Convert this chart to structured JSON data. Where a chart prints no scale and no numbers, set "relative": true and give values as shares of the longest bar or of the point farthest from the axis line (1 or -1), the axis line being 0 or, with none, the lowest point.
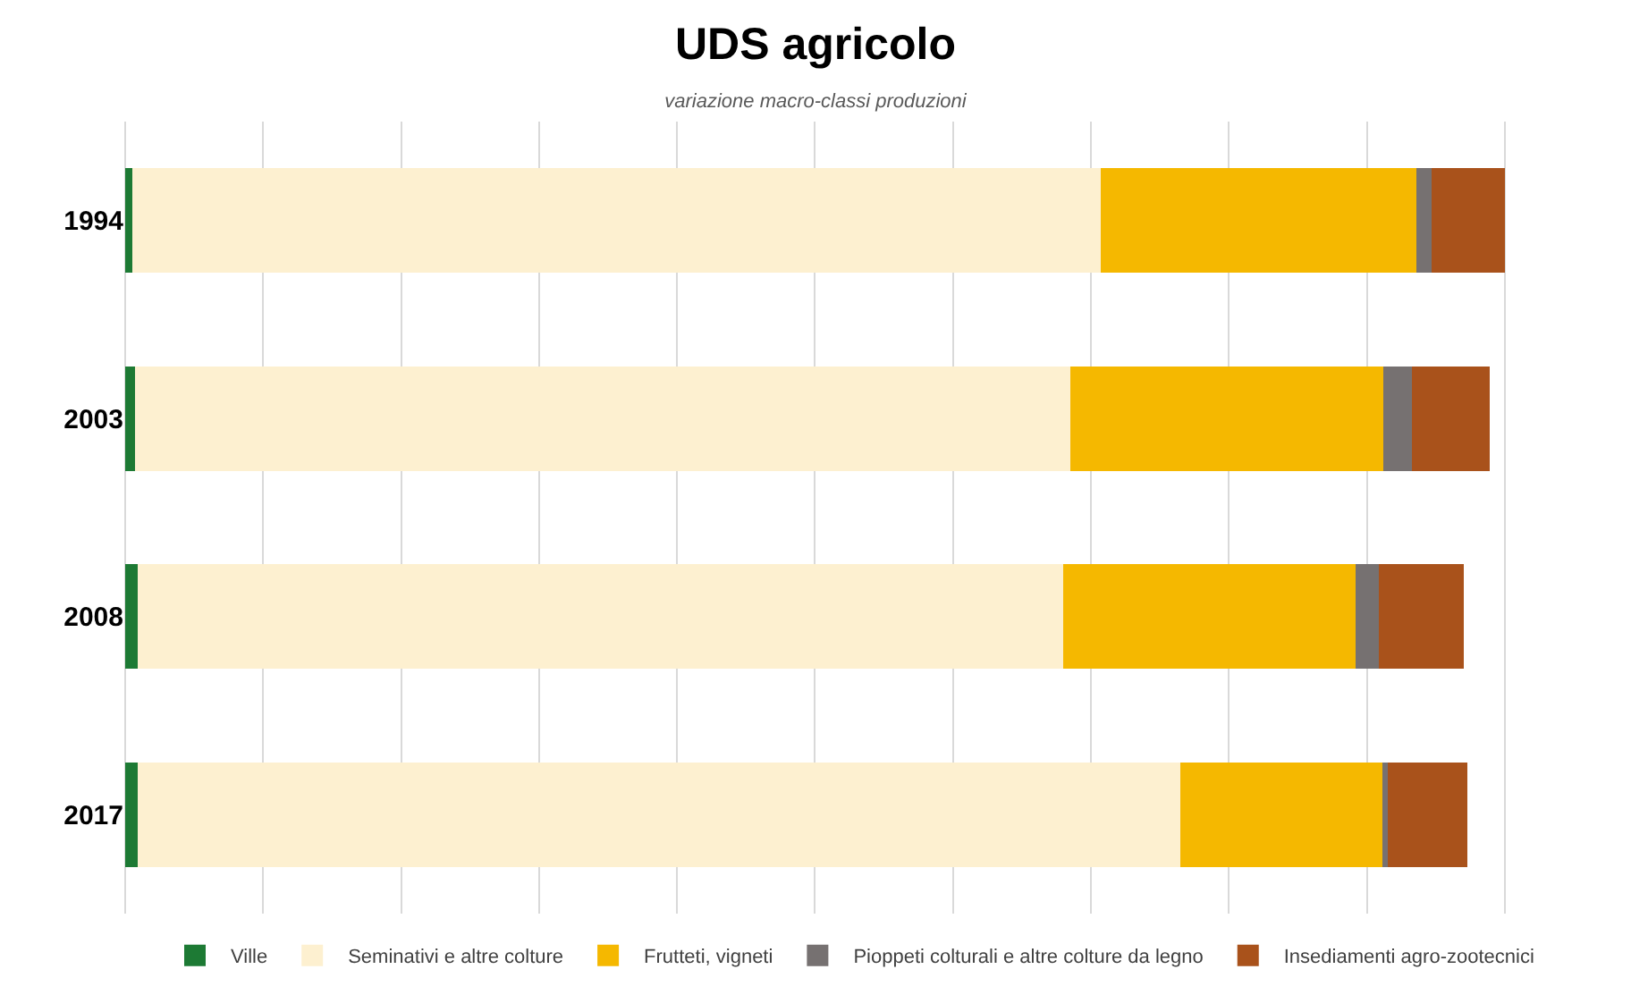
{
  "chart_data": {
    "type": "bar",
    "title": "UDS agricolo",
    "subtitle": "variazione macro-classi produzioni",
    "categories": [
      "1994",
      "2003",
      "2008",
      "2017"
    ],
    "orientation": "horizontal",
    "stacked": true,
    "relative": true,
    "grid": "x",
    "legend": "bottom",
    "series": [
      {
        "name": "Ville",
        "color": "#1d7a34",
        "values": [
          0.005,
          0.007,
          0.009,
          0.009
        ]
      },
      {
        "name": "Seminativi e altre colture",
        "color": "#fdf0d0",
        "values": [
          0.702,
          0.678,
          0.671,
          0.756
        ]
      },
      {
        "name": "Frutteti, vigneti",
        "color": "#f5b800",
        "values": [
          0.229,
          0.227,
          0.212,
          0.146
        ]
      },
      {
        "name": "Pioppeti colturali e altre colture da legno",
        "color": "#767171",
        "values": [
          0.011,
          0.021,
          0.017,
          0.004
        ]
      },
      {
        "name": "Insediamenti agro-zootecnici",
        "color": "#a9521b",
        "values": [
          0.053,
          0.056,
          0.061,
          0.058
        ]
      }
    ]
  }
}
